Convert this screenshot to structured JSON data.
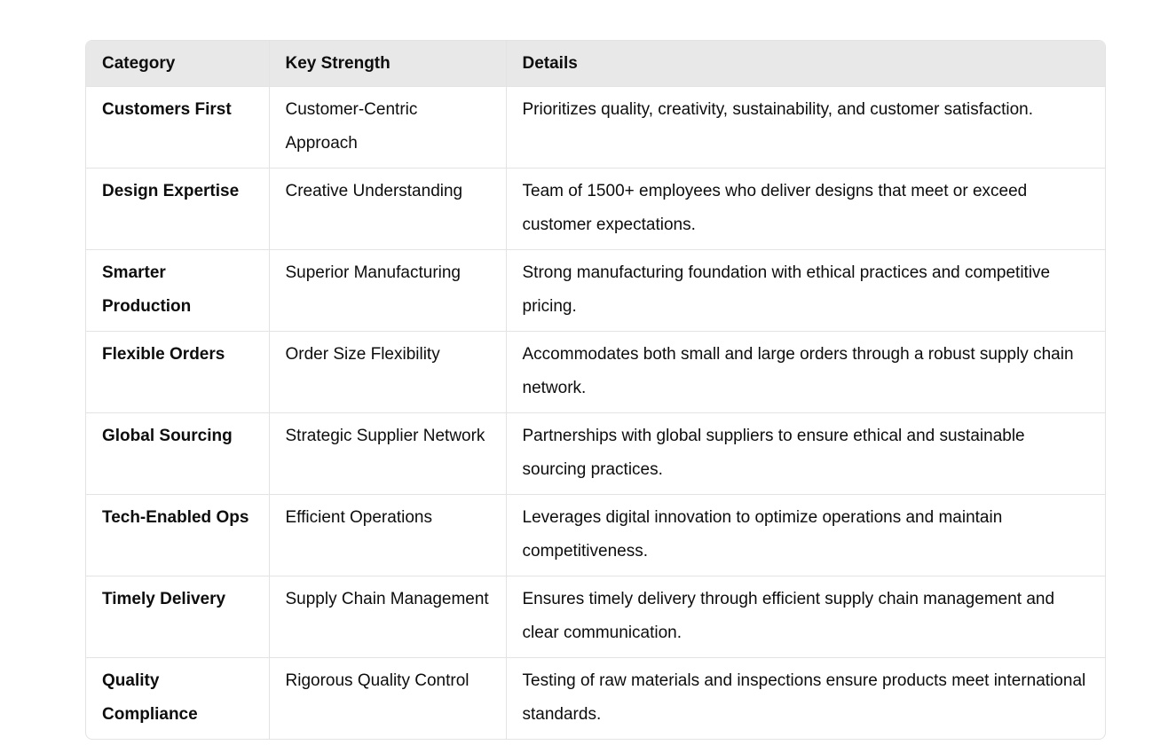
{
  "table": {
    "headers": [
      "Category",
      "Key Strength",
      "Details"
    ],
    "rows": [
      {
        "category": "Customers First",
        "strength": "Customer-Centric Approach",
        "details": "Prioritizes quality, creativity, sustainability, and customer satisfaction."
      },
      {
        "category": "Design Expertise",
        "strength": "Creative Understanding",
        "details": "Team of 1500+ employees who deliver designs that meet or exceed customer expectations."
      },
      {
        "category": "Smarter Production",
        "strength": "Superior Manufacturing",
        "details": "Strong manufacturing foundation with ethical practices and competitive pricing."
      },
      {
        "category": "Flexible Orders",
        "strength": "Order Size Flexibility",
        "details": "Accommodates both small and large orders through a robust supply chain network."
      },
      {
        "category": "Global Sourcing",
        "strength": "Strategic Supplier Network",
        "details": "Partnerships with global suppliers to ensure ethical and sustainable sourcing practices."
      },
      {
        "category": "Tech-Enabled Ops",
        "strength": "Efficient Operations",
        "details": "Leverages digital innovation to optimize operations and maintain competitiveness."
      },
      {
        "category": "Timely Delivery",
        "strength": "Supply Chain Management",
        "details": "Ensures timely delivery through efficient supply chain management and clear communication."
      },
      {
        "category": "Quality Compliance",
        "strength": "Rigorous Quality Control",
        "details": "Testing of raw materials and inspections ensure products meet international standards."
      }
    ]
  }
}
